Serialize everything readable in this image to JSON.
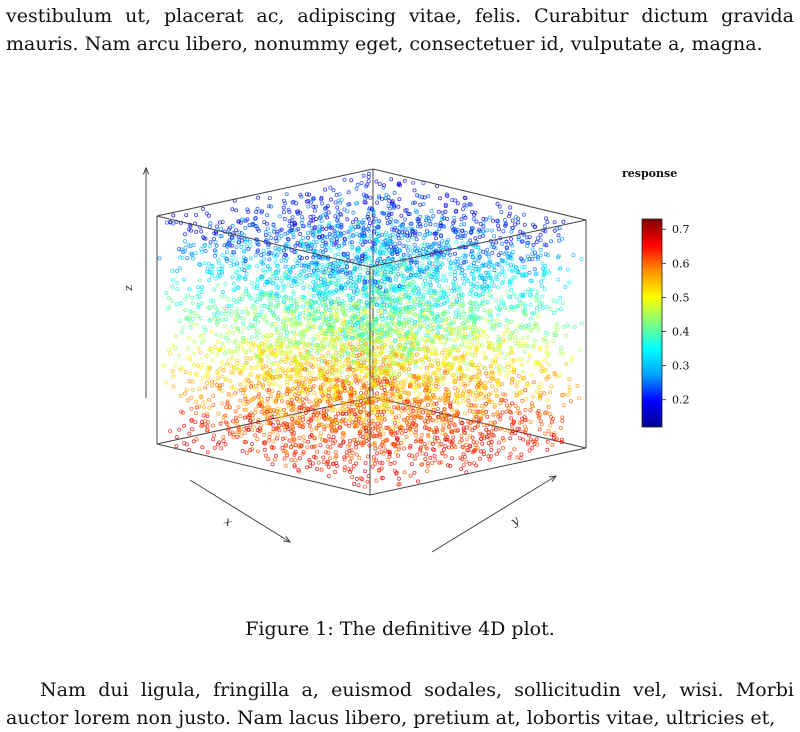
{
  "text": {
    "top_lines": [
      "vestibulum ut, placerat ac, adipiscing vitae, felis. Curabitur dictum gravida",
      "mauris. Nam arcu libero, nonummy eget, consectetuer id, vulputate a, magna."
    ],
    "bottom_lines": [
      "Nam dui ligula, fringilla a, euismod sodales, sollicitudin vel, wisi. Morbi",
      "auctor lorem non justo. Nam lacus libero, pretium at, lobortis vitae, ultricies et,"
    ]
  },
  "figure": {
    "caption": "Figure 1: The definitive 4D plot."
  },
  "chart_data": {
    "type": "scatter",
    "dimensions": 3,
    "xlabel": "x",
    "ylabel": "y",
    "zlabel": "z",
    "title": "",
    "legend": {
      "title": "response",
      "placement": "right",
      "range": [
        0.12,
        0.73
      ],
      "ticks": [
        "0.2",
        "0.3",
        "0.4",
        "0.5",
        "0.6",
        "0.7"
      ],
      "tick_values": [
        0.2,
        0.3,
        0.4,
        0.5,
        0.6,
        0.7
      ]
    },
    "colormap": [
      "#00008f",
      "#0000ff",
      "#00a0ff",
      "#00ffff",
      "#80ff80",
      "#ffff00",
      "#ff9000",
      "#ff0000",
      "#800000"
    ],
    "marker": "open-circle",
    "grid": false,
    "point_count": 6000,
    "response_vs_z": [
      {
        "z": 0.0,
        "response": 0.66
      },
      {
        "z": 0.25,
        "response": 0.56
      },
      {
        "z": 0.5,
        "response": 0.44
      },
      {
        "z": 0.75,
        "response": 0.33
      },
      {
        "z": 1.0,
        "response": 0.18
      }
    ]
  }
}
